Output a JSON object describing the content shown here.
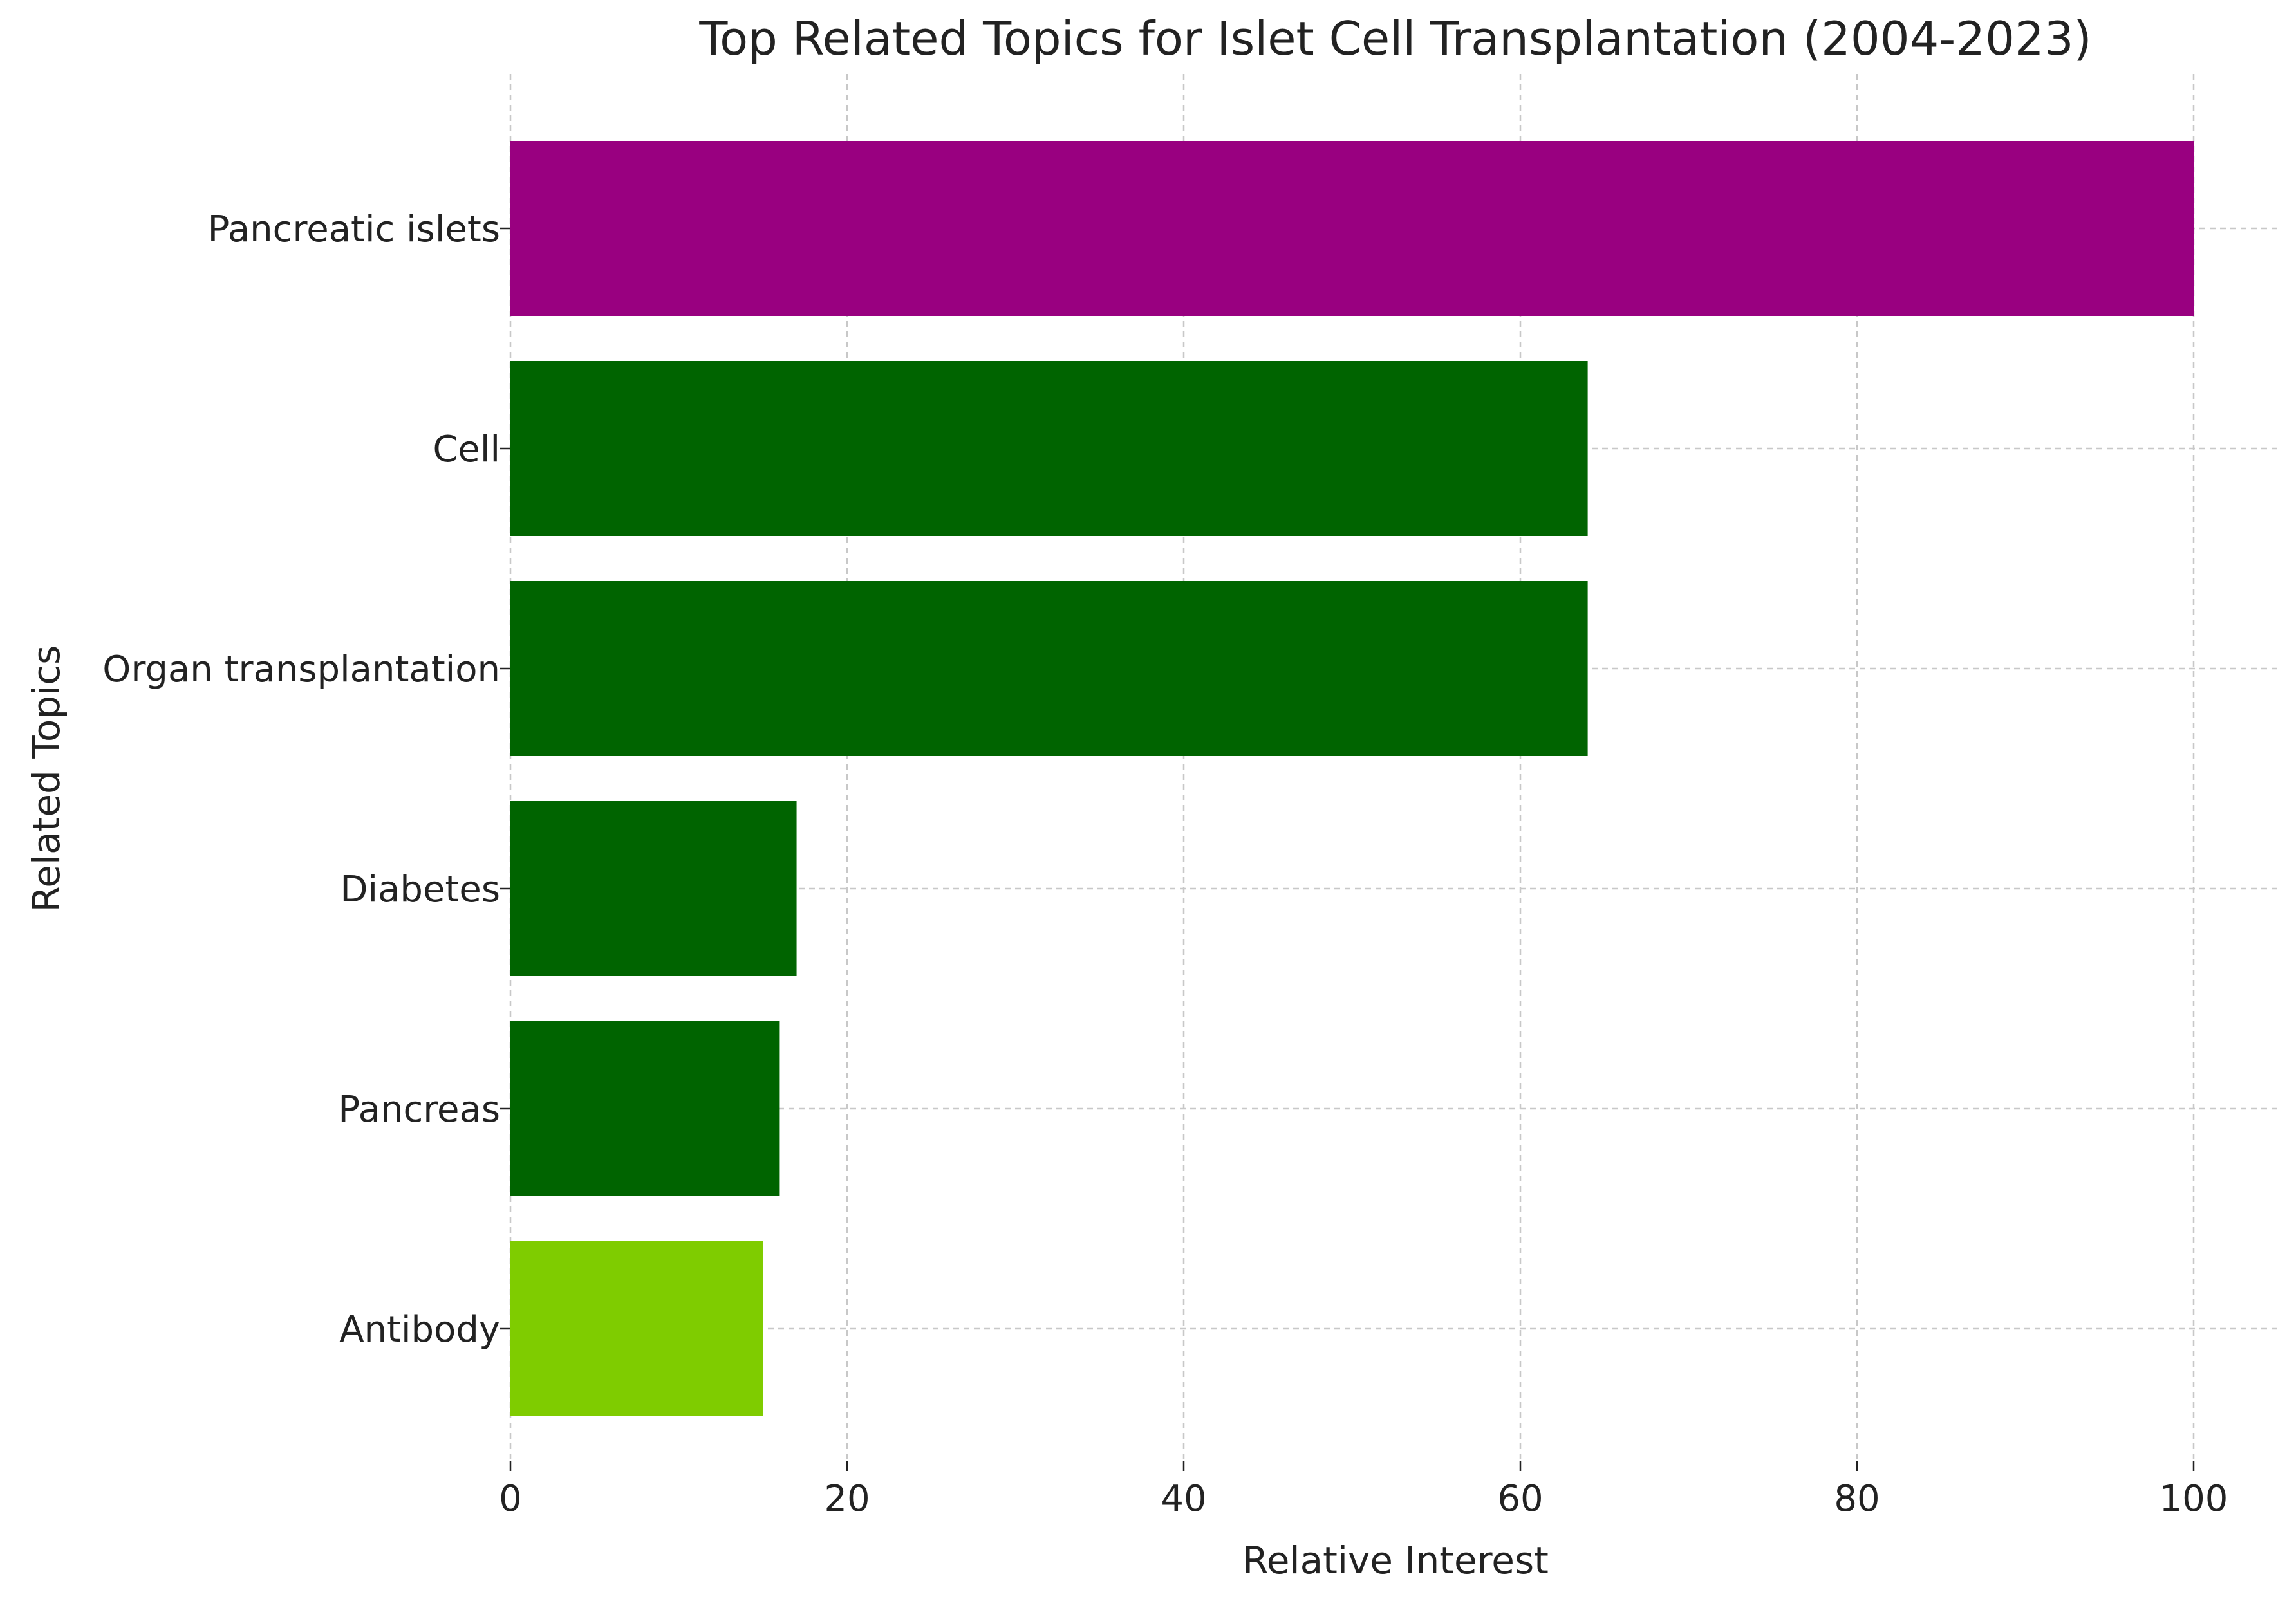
{
  "chart_data": {
    "type": "bar",
    "orientation": "horizontal",
    "title": "Top Related Topics for Islet Cell Transplantation (2004-2023)",
    "xlabel": "Relative Interest",
    "ylabel": "Related Topics",
    "categories": [
      "Pancreatic islets",
      "Cell",
      "Organ transplantation",
      "Diabetes",
      "Pancreas",
      "Antibody"
    ],
    "values": [
      100,
      64,
      64,
      17,
      16,
      15
    ],
    "colors": [
      "#990080",
      "#006400",
      "#006400",
      "#006400",
      "#006400",
      "#7FCC00"
    ],
    "xlim": [
      0,
      100
    ],
    "xticks": [
      0,
      20,
      40,
      60,
      80,
      100
    ],
    "xtick_labels": [
      "0",
      "20",
      "40",
      "60",
      "80",
      "100"
    ],
    "grid": true,
    "legend": "none"
  }
}
